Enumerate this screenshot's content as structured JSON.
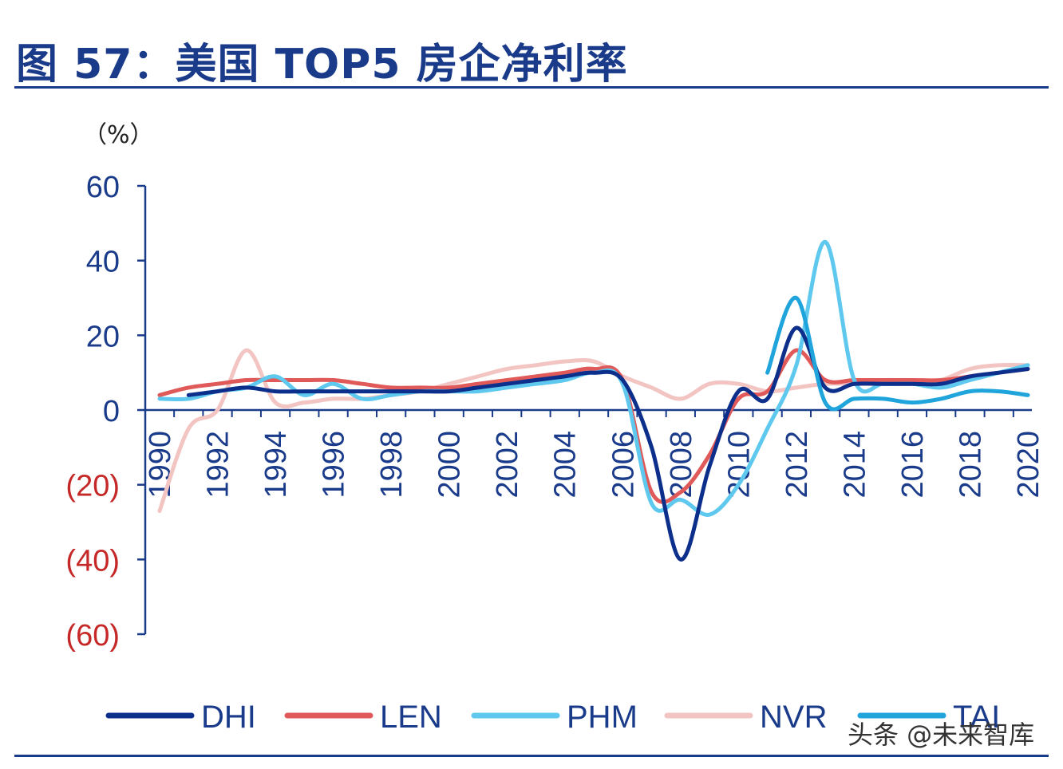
{
  "header": {
    "title": "图 57：美国 TOP5 房企净利率"
  },
  "watermark": "头条 @未来智库",
  "colors": {
    "axis": "#1a3a8a",
    "positive_tick": "#1a3a8a",
    "negative_tick": "#c62828"
  },
  "chart_data": {
    "type": "line",
    "title": "图 57：美国 TOP5 房企净利率",
    "ylabel": "（%）",
    "ylim": [
      -60,
      60
    ],
    "xlim": [
      1990,
      2020
    ],
    "y_ticks": [
      {
        "value": 60,
        "label": "60"
      },
      {
        "value": 40,
        "label": "40"
      },
      {
        "value": 20,
        "label": "20"
      },
      {
        "value": 0,
        "label": "0"
      },
      {
        "value": -20,
        "label": "(20)"
      },
      {
        "value": -40,
        "label": "(40)"
      },
      {
        "value": -60,
        "label": "(60)"
      }
    ],
    "x_tick_labels": [
      "1990",
      "1992",
      "1994",
      "1996",
      "1998",
      "2000",
      "2002",
      "2004",
      "2006",
      "2008",
      "2010",
      "2012",
      "2014",
      "2016",
      "2018",
      "2020"
    ],
    "legend_position": "bottom",
    "series": [
      {
        "name": "DHI",
        "color": "#0d2f8c",
        "x": [
          1991,
          1992,
          1993,
          1994,
          1995,
          1996,
          1997,
          1998,
          1999,
          2000,
          2001,
          2002,
          2003,
          2004,
          2005,
          2006,
          2007,
          2008,
          2009,
          2010,
          2011,
          2012,
          2013,
          2014,
          2015,
          2016,
          2017,
          2018,
          2019,
          2020
        ],
        "y": [
          4,
          5,
          6,
          5,
          5,
          5,
          5,
          5,
          5,
          5,
          6,
          7,
          8,
          9,
          10,
          8,
          -10,
          -40,
          -15,
          5,
          3,
          22,
          6,
          7,
          7,
          7,
          7,
          9,
          10,
          11
        ]
      },
      {
        "name": "LEN",
        "color": "#e05a5a",
        "x": [
          1990,
          1991,
          1992,
          1993,
          1994,
          1995,
          1996,
          1997,
          1998,
          1999,
          2000,
          2001,
          2002,
          2003,
          2004,
          2005,
          2006,
          2007,
          2008,
          2009,
          2010,
          2011,
          2012,
          2013,
          2014,
          2015,
          2016,
          2017,
          2018,
          2019,
          2020
        ],
        "y": [
          4,
          6,
          7,
          8,
          8,
          8,
          8,
          7,
          6,
          6,
          6,
          7,
          8,
          9,
          10,
          11,
          8,
          -22,
          -22,
          -12,
          3,
          5,
          16,
          8,
          8,
          8,
          8,
          8,
          9,
          10,
          11
        ]
      },
      {
        "name": "PHM",
        "color": "#5ec8ee",
        "x": [
          1990,
          1991,
          1992,
          1993,
          1994,
          1995,
          1996,
          1997,
          1998,
          1999,
          2000,
          2001,
          2002,
          2003,
          2004,
          2005,
          2006,
          2007,
          2008,
          2009,
          2010,
          2011,
          2012,
          2013,
          2014,
          2015,
          2016,
          2017,
          2018,
          2019,
          2020
        ],
        "y": [
          3,
          3,
          5,
          6,
          9,
          4,
          7,
          3,
          4,
          5,
          5,
          5,
          6,
          7,
          8,
          10,
          7,
          -25,
          -24,
          -28,
          -20,
          -5,
          12,
          45,
          8,
          7,
          7,
          6,
          8,
          10,
          12
        ]
      },
      {
        "name": "NVR",
        "color": "#f2c4c2",
        "x": [
          1990,
          1991,
          1992,
          1993,
          1994,
          1995,
          1996,
          1997,
          1998,
          1999,
          2000,
          2001,
          2002,
          2003,
          2004,
          2005,
          2006,
          2007,
          2008,
          2009,
          2010,
          2011,
          2012,
          2013,
          2014,
          2015,
          2016,
          2017,
          2018,
          2019,
          2020
        ],
        "y": [
          -27,
          -5,
          0,
          16,
          2,
          2,
          3,
          3,
          4,
          5,
          7,
          9,
          11,
          12,
          13,
          13,
          9,
          6,
          3,
          7,
          7,
          5,
          6,
          7,
          7,
          7,
          7,
          8,
          11,
          12,
          12
        ]
      },
      {
        "name": "TAI",
        "color": "#1fa4dc",
        "x": [
          2011,
          2012,
          2013,
          2014,
          2015,
          2016,
          2017,
          2018,
          2019,
          2020
        ],
        "y": [
          10,
          30,
          2,
          3,
          3,
          2,
          3,
          5,
          5,
          4
        ]
      }
    ]
  }
}
